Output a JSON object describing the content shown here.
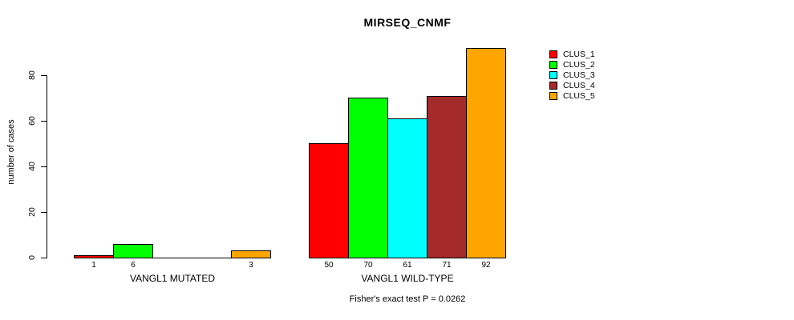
{
  "chart_data": {
    "type": "bar",
    "title": "MIRSEQ_CNMF",
    "ylabel": "number of cases",
    "xlabel": "",
    "footnote": "Fisher's exact test P = 0.0262",
    "yticks": [
      0,
      20,
      40,
      60,
      80
    ],
    "ylim": [
      0,
      92
    ],
    "grid": false,
    "legend_position": "right",
    "series": [
      {
        "name": "CLUS_1",
        "color": "#FF0000"
      },
      {
        "name": "CLUS_2",
        "color": "#00FF00"
      },
      {
        "name": "CLUS_3",
        "color": "#00FFFF"
      },
      {
        "name": "CLUS_4",
        "color": "#A52A2A"
      },
      {
        "name": "CLUS_5",
        "color": "#FFA500"
      }
    ],
    "groups": [
      {
        "label": "VANGL1 MUTATED",
        "values": [
          1,
          6,
          0,
          0,
          3
        ]
      },
      {
        "label": "VANGL1 WILD-TYPE",
        "values": [
          50,
          70,
          61,
          71,
          92
        ]
      }
    ]
  }
}
